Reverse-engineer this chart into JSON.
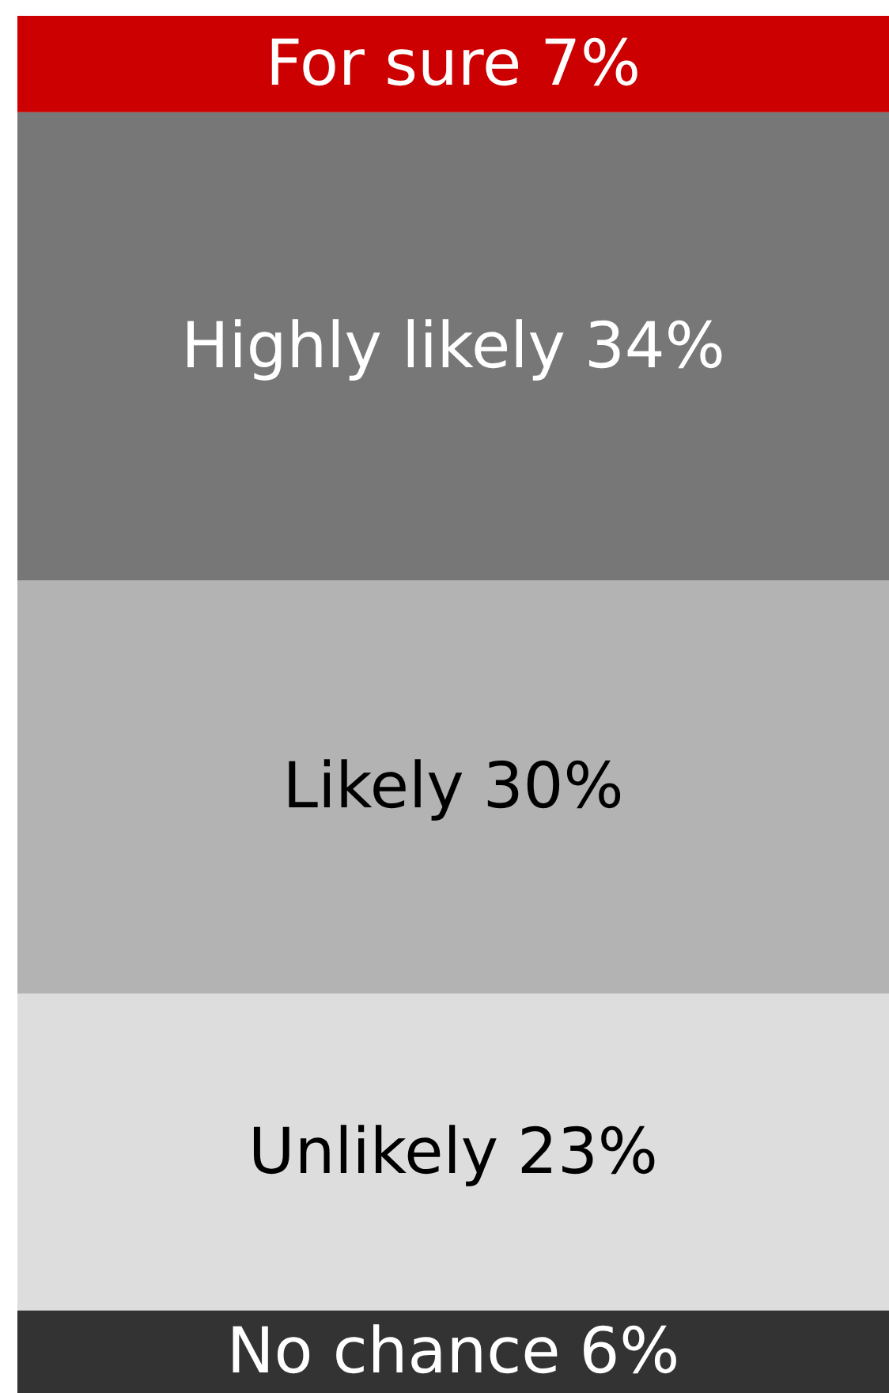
{
  "chart_data": {
    "type": "bar",
    "stacked": true,
    "categories": [
      null
    ],
    "series": [
      {
        "name": "No chance",
        "color": "#333333",
        "values": [
          6
        ],
        "value_labels": [
          "6%"
        ]
      },
      {
        "name": "Unlikely",
        "color": "#dddddd",
        "values": [
          23
        ],
        "value_labels": [
          "23%"
        ]
      },
      {
        "name": "Likely",
        "color": "#b3b3b3",
        "values": [
          30
        ],
        "value_labels": [
          "30%"
        ]
      },
      {
        "name": "Highly likely",
        "color": "#777777",
        "values": [
          34
        ],
        "value_labels": [
          "34%"
        ]
      },
      {
        "name": "For sure",
        "color": "#cc0000",
        "values": [
          7
        ],
        "value_labels": [
          "7%"
        ]
      }
    ]
  }
}
